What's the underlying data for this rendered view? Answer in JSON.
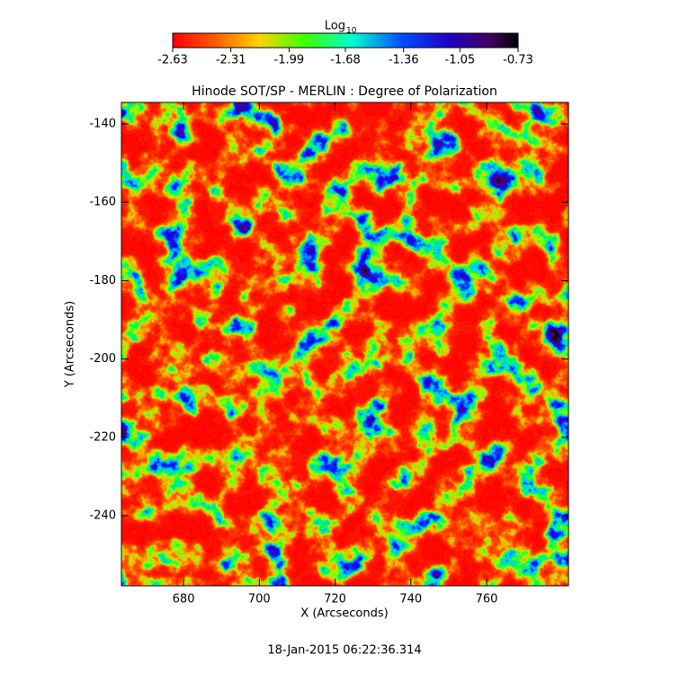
{
  "chart_data": {
    "type": "heatmap",
    "title": "Hinode SOT/SP - MERLIN : Degree of Polarization",
    "x_label": "X (Arcseconds)",
    "y_label": "Y (Arcseconds)",
    "colorbar_label": "Log",
    "colorbar_label_subscript": "10",
    "colorbar_lim": [
      -2.63,
      -0.73
    ],
    "colorbar_ticks": [
      -2.63,
      -2.31,
      -1.99,
      -1.68,
      -1.36,
      -1.05,
      -0.73
    ],
    "xlim": [
      663.6,
      781.6
    ],
    "xticks": [
      680,
      700,
      720,
      740,
      760
    ],
    "ylim": [
      -257.9,
      -134.5
    ],
    "yticks": [
      -140,
      -160,
      -180,
      -200,
      -220,
      -240
    ],
    "footer": "18-Jan-2015 06:22:36.314"
  }
}
